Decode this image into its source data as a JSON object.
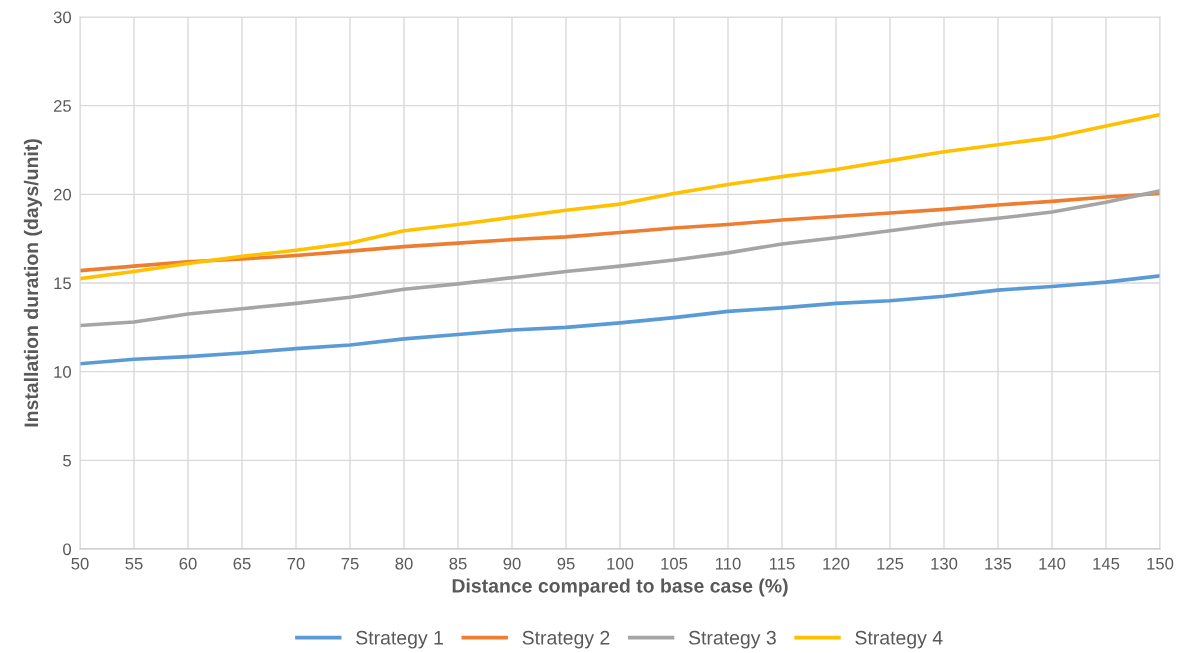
{
  "chart_data": {
    "type": "line",
    "xlabel": "Distance compared to base case (%)",
    "ylabel": "Installation duration (days/unit)",
    "x": [
      50,
      55,
      60,
      65,
      70,
      75,
      80,
      85,
      90,
      95,
      100,
      105,
      110,
      115,
      120,
      125,
      130,
      135,
      140,
      145,
      150
    ],
    "xlim": [
      50,
      150
    ],
    "xticks": [
      50,
      55,
      60,
      65,
      70,
      75,
      80,
      85,
      90,
      95,
      100,
      105,
      110,
      115,
      120,
      125,
      130,
      135,
      140,
      145,
      150
    ],
    "ylim": [
      0,
      30
    ],
    "yticks": [
      0,
      5,
      10,
      15,
      20,
      25,
      30
    ],
    "grid": true,
    "legend": "bottom",
    "marker": "none",
    "line_style": "solid",
    "series": [
      {
        "name": "Strategy 1",
        "color": "#5b9bd5",
        "values": [
          10.45,
          10.7,
          10.85,
          11.05,
          11.3,
          11.5,
          11.85,
          12.1,
          12.35,
          12.5,
          12.75,
          13.05,
          13.4,
          13.6,
          13.85,
          14.0,
          14.25,
          14.6,
          14.8,
          15.05,
          15.4
        ]
      },
      {
        "name": "Strategy 2",
        "color": "#ed7d31",
        "values": [
          15.7,
          15.95,
          16.2,
          16.35,
          16.55,
          16.8,
          17.05,
          17.25,
          17.45,
          17.6,
          17.85,
          18.1,
          18.3,
          18.55,
          18.75,
          18.95,
          19.15,
          19.4,
          19.6,
          19.85,
          20.05
        ]
      },
      {
        "name": "Strategy 3",
        "color": "#a5a5a5",
        "values": [
          12.6,
          12.8,
          13.25,
          13.55,
          13.85,
          14.2,
          14.65,
          14.95,
          15.3,
          15.65,
          15.95,
          16.3,
          16.7,
          17.2,
          17.55,
          17.95,
          18.35,
          18.65,
          19.0,
          19.55,
          20.2
        ]
      },
      {
        "name": "Strategy 4",
        "color": "#ffc000",
        "values": [
          15.25,
          15.65,
          16.1,
          16.5,
          16.85,
          17.25,
          17.95,
          18.3,
          18.7,
          19.1,
          19.45,
          20.05,
          20.55,
          21.0,
          21.4,
          21.9,
          22.4,
          22.8,
          23.2,
          23.85,
          24.5
        ]
      }
    ]
  }
}
